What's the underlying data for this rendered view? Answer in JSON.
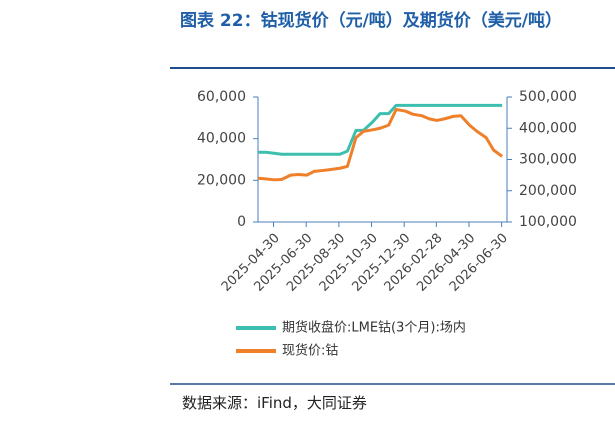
{
  "title": "图表 22：钴现货价（元/吨）及期货价（美元/吨）",
  "source": "数据来源：iFind，大同证券",
  "chart_data": {
    "type": "line",
    "x": [
      "2025-04-01",
      "2025-04-15",
      "2025-05-01",
      "2025-05-15",
      "2025-06-01",
      "2025-06-15",
      "2025-07-01",
      "2025-07-15",
      "2025-08-01",
      "2025-08-15",
      "2025-09-01",
      "2025-09-15",
      "2025-10-01",
      "2025-10-15",
      "2025-11-01",
      "2025-11-15",
      "2025-12-01",
      "2025-12-15",
      "2026-01-01",
      "2026-01-15",
      "2026-02-01",
      "2026-02-15",
      "2026-03-01",
      "2026-03-15",
      "2026-04-01",
      "2026-04-15",
      "2026-05-01",
      "2026-05-15",
      "2026-06-01",
      "2026-06-15",
      "2026-07-01"
    ],
    "xlim": [
      "2025-04-01",
      "2026-07-10"
    ],
    "xticks": [
      "2025-04-30",
      "2025-06-30",
      "2025-08-30",
      "2025-10-30",
      "2025-12-30",
      "2026-02-28",
      "2026-04-30",
      "2026-06-30"
    ],
    "ylim": [
      0,
      60000
    ],
    "yticks": [
      0,
      {
        "value": 20000,
        "label": "20,000"
      },
      {
        "value": 40000,
        "label": "40,000"
      },
      {
        "value": 60000,
        "label": "60,000"
      }
    ],
    "y2lim": [
      100000,
      500000
    ],
    "y2ticks": [
      {
        "value": 100000,
        "label": "100,000"
      },
      {
        "value": 200000,
        "label": "200,000"
      },
      {
        "value": 300000,
        "label": "300,000"
      },
      {
        "value": 400000,
        "label": "400,000"
      },
      {
        "value": 500000,
        "label": "500,000"
      }
    ],
    "series": [
      {
        "name": "期货收盘价:LME钴(3个月):场内",
        "color": "#3dbfb0",
        "values": [
          33500,
          33500,
          33000,
          32500,
          32500,
          32500,
          32500,
          32500,
          32500,
          32500,
          32500,
          34000,
          44000,
          44000,
          48000,
          52000,
          52000,
          56000,
          56000,
          56000,
          56000,
          56000,
          56000,
          56000,
          56000,
          56000,
          56000,
          56000,
          56000,
          56000,
          56000
        ]
      },
      {
        "name": "现货价:钴",
        "color": "#f07f2a",
        "axis": "y2",
        "values": [
          240000,
          238000,
          235000,
          236000,
          250000,
          252000,
          250000,
          262000,
          265000,
          268000,
          272000,
          278000,
          370000,
          390000,
          395000,
          400000,
          410000,
          460000,
          455000,
          445000,
          440000,
          430000,
          425000,
          430000,
          438000,
          440000,
          410000,
          390000,
          370000,
          330000,
          310000
        ]
      }
    ]
  }
}
